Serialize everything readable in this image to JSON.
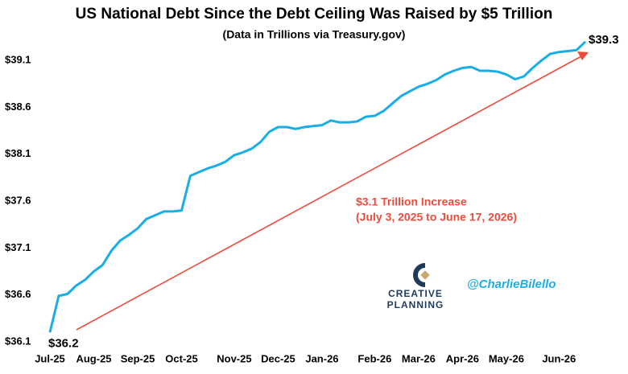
{
  "chart_data": {
    "type": "line",
    "title": "US National Debt Since the Debt Ceiling Was Raised by $5 Trillion",
    "subtitle": "(Data in Trillions via Treasury.gov)",
    "annotation": "$3.1 Trillion Increase",
    "annotation_detail": "(July 3, 2025 to June 17, 2026)",
    "watermark": "@CharlieBilello",
    "logo_lines": [
      "CREATIVE",
      "PLANNING"
    ],
    "color": "#1aaee6",
    "categories": [
      "Jul-25",
      null,
      null,
      null,
      null,
      "Aug-25",
      null,
      null,
      null,
      null,
      "Sep-25",
      null,
      null,
      null,
      null,
      "Oct-25",
      null,
      null,
      null,
      null,
      null,
      "Nov-25",
      null,
      null,
      null,
      null,
      "Dec-25",
      null,
      null,
      null,
      null,
      "Jan-26",
      null,
      null,
      null,
      null,
      null,
      "Feb-26",
      null,
      null,
      null,
      null,
      "Mar-26",
      null,
      null,
      null,
      null,
      "Apr-26",
      null,
      null,
      null,
      null,
      "May-26",
      null,
      null,
      null,
      null,
      null,
      "Jun-26",
      null,
      null,
      null
    ],
    "values": [
      36.2,
      36.59,
      36.61,
      36.7,
      36.76,
      36.85,
      36.92,
      37.07,
      37.18,
      37.24,
      37.31,
      37.41,
      37.45,
      37.49,
      37.49,
      37.5,
      37.87,
      37.91,
      37.95,
      37.98,
      38.02,
      38.09,
      38.12,
      38.16,
      38.23,
      38.34,
      38.39,
      38.39,
      38.37,
      38.39,
      38.4,
      38.41,
      38.46,
      38.44,
      38.44,
      38.45,
      38.5,
      38.51,
      38.56,
      38.64,
      38.72,
      38.77,
      38.82,
      38.85,
      38.89,
      38.95,
      38.99,
      39.02,
      39.03,
      38.99,
      38.99,
      38.98,
      38.95,
      38.9,
      38.93,
      39.02,
      39.1,
      39.17,
      39.19,
      39.2,
      39.21,
      39.3
    ],
    "value_labels": [
      "$36.2",
      null,
      null,
      null,
      null,
      null,
      null,
      null,
      null,
      null,
      null,
      null,
      null,
      null,
      null,
      null,
      null,
      null,
      null,
      null,
      null,
      null,
      null,
      null,
      null,
      null,
      null,
      null,
      null,
      null,
      null,
      null,
      null,
      null,
      null,
      null,
      null,
      null,
      null,
      null,
      null,
      null,
      null,
      null,
      null,
      null,
      null,
      null,
      null,
      null,
      null,
      null,
      null,
      null,
      null,
      null,
      null,
      null,
      null,
      null,
      null,
      "$39.3"
    ],
    "ylim": [
      36.1,
      39.35
    ],
    "yticks": [
      {
        "value": 36.1,
        "label": "$36.1"
      },
      {
        "value": 36.6,
        "label": "$36.6"
      },
      {
        "value": 37.1,
        "label": "$37.1"
      },
      {
        "value": 37.6,
        "label": "$37.6"
      },
      {
        "value": 38.1,
        "label": "$38.1"
      },
      {
        "value": 38.6,
        "label": "$38.6"
      },
      {
        "value": 39.1,
        "label": "$39.1"
      }
    ],
    "grid": false
  }
}
